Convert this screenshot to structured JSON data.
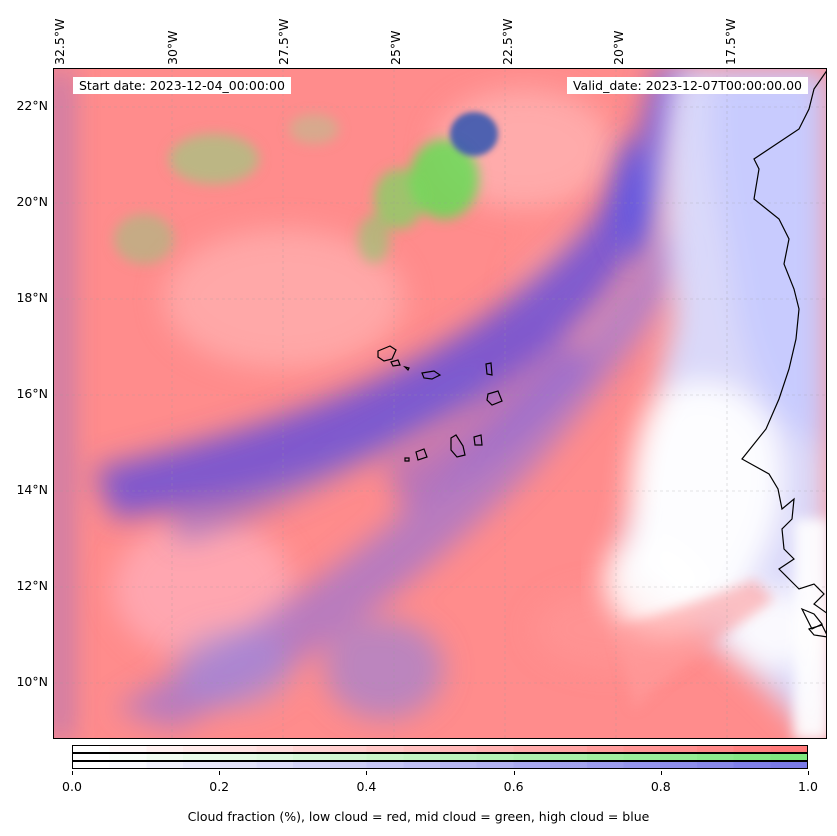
{
  "header": {
    "start_date": "Start date: 2023-12-04_00:00:00",
    "valid_date": "Valid_date: 2023-12-07T00:00:00.00"
  },
  "longitude_labels": [
    "32.5°W",
    "30°W",
    "27.5°W",
    "25°W",
    "22.5°W",
    "20°W",
    "17.5°W"
  ],
  "latitude_labels": [
    "22°N",
    "20°N",
    "18°N",
    "16°N",
    "14°N",
    "12°N",
    "10°N"
  ],
  "colorbar": {
    "ticks": [
      "0.0",
      "0.2",
      "0.4",
      "0.6",
      "0.8",
      "1.0"
    ],
    "label": "Cloud fraction (%), low cloud = red, mid cloud = green, high cloud = blue",
    "colors": {
      "low": "#ff7a7a",
      "mid": "#7fe87f",
      "high": "#7a7ae8"
    }
  },
  "map": {
    "lon_range": [
      -32.8,
      -15.5
    ],
    "lat_range": [
      8.8,
      22.8
    ],
    "background_colors": {
      "low": "#ff8a8a",
      "high": "#8a7ae0",
      "mid": "#80d870",
      "clear": "#ffffff"
    }
  }
}
